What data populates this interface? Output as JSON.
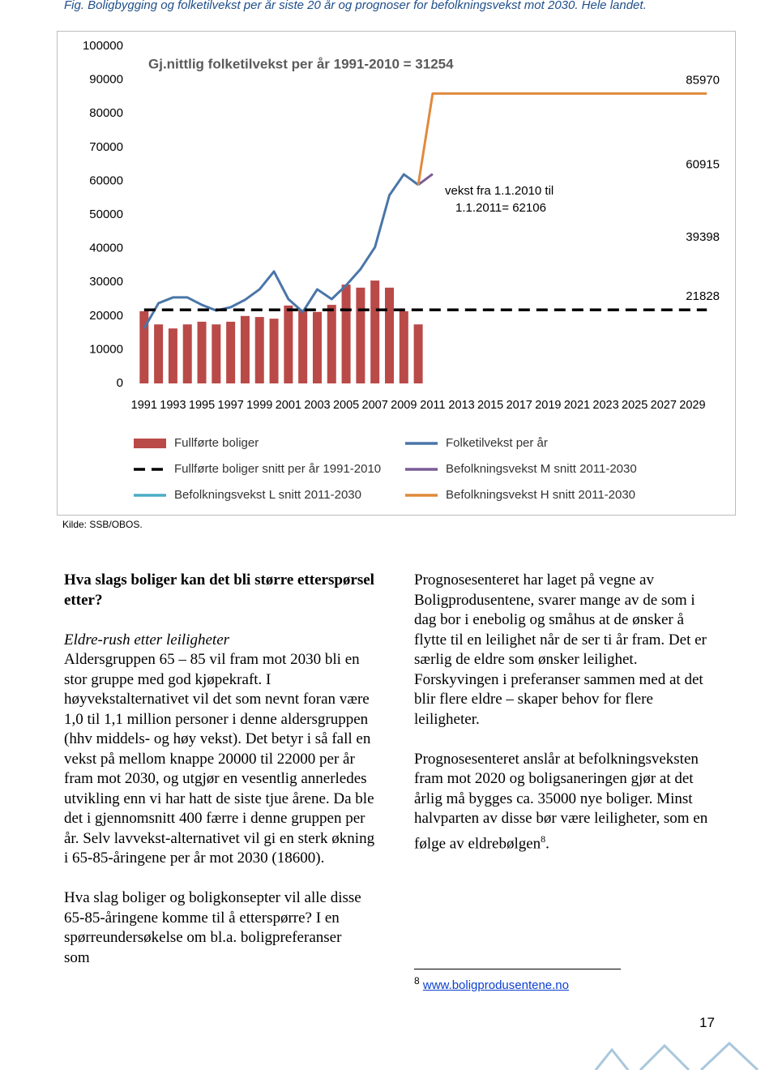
{
  "caption": "Fig. Boligbygging og folketilvekst per år siste 20 år og prognoser for befolkningsvekst mot 2030.  Hele landet.",
  "chart_data": {
    "type": "bar",
    "title": "Gj.nittlig folketilvekst per år 1991-2010 = 31254",
    "annotations": [
      "vekst fra 1.1.2010 til",
      "1.1.2011= 62106"
    ],
    "xlim": [
      1990,
      2031
    ],
    "xticks": [
      1991,
      1993,
      1995,
      1997,
      1999,
      2001,
      2003,
      2005,
      2007,
      2009,
      2011,
      2013,
      2015,
      2017,
      2019,
      2021,
      2023,
      2025,
      2027,
      2029
    ],
    "ylim": [
      0,
      100000
    ],
    "yticks": [
      0,
      10000,
      20000,
      30000,
      40000,
      50000,
      60000,
      70000,
      80000,
      90000,
      100000
    ],
    "grid": false,
    "series": [
      {
        "name": "Fullførte boliger",
        "type": "bar",
        "color": "#b94a48",
        "x": [
          1991,
          1992,
          1993,
          1994,
          1995,
          1996,
          1997,
          1998,
          1999,
          2000,
          2001,
          2002,
          2003,
          2004,
          2005,
          2006,
          2007,
          2008,
          2009,
          2010
        ],
        "values": [
          21400,
          17500,
          16300,
          17500,
          18300,
          17500,
          18300,
          20000,
          19700,
          19200,
          23100,
          21900,
          21200,
          23300,
          29300,
          28400,
          30500,
          28400,
          21400,
          17500
        ]
      },
      {
        "name": "Folketilvekst per år",
        "type": "line",
        "color": "#4a76a8",
        "x": [
          1991,
          1992,
          1993,
          1994,
          1995,
          1996,
          1997,
          1998,
          1999,
          2000,
          2001,
          2002,
          2003,
          2004,
          2005,
          2006,
          2007,
          2008,
          2009,
          2010
        ],
        "values": [
          16300,
          23800,
          25500,
          25500,
          23300,
          21600,
          22600,
          24800,
          27900,
          33200,
          25000,
          21200,
          27900,
          25000,
          29100,
          33900,
          40400,
          55800,
          62000,
          58900
        ]
      },
      {
        "name": "Fullførte boliger snitt per år 1991-2010",
        "type": "line",
        "dashed": true,
        "color": "#000000",
        "x": [
          1991,
          2030
        ],
        "values": [
          21828,
          21828
        ]
      },
      {
        "name": "Befolkningsvekst M snitt 2011-2030",
        "type": "line",
        "color": "#7a5c97",
        "x": [
          2010,
          2011
        ],
        "values": [
          58900,
          62106
        ]
      },
      {
        "name": "Befolkningsvekst L snitt 2011-2030",
        "type": "line",
        "color": "#4bacc6"
      },
      {
        "name": "Befolkningsvekst H snitt 2011-2030",
        "type": "line",
        "color": "#e08a3c",
        "x": [
          2010,
          2011,
          2030
        ],
        "values": [
          58900,
          85970,
          85970
        ]
      }
    ],
    "end_labels": [
      85970,
      60915,
      39398,
      21828
    ]
  },
  "source": "Kilde: SSB/OBOS.",
  "left": {
    "heading": "Hva slags boliger kan det bli større etterspørsel etter?",
    "subheading": "Eldre-rush etter leiligheter",
    "paragraphs": [
      "Aldersgruppen 65 – 85 vil fram mot 2030 bli en stor gruppe med god kjøpekraft. I høyvekstalternativet vil det som nevnt foran være 1,0 til 1,1 million personer i denne aldersgruppen (hhv middels- og høy vekst). Det betyr i så fall en vekst på mellom knappe 20000 til 22000 per år fram mot 2030, og utgjør en vesentlig annerledes utvikling enn vi har hatt de siste tjue årene. Da ble det i gjennomsnitt 400 færre i denne gruppen per år.  Selv lavvekst-alternativet vil gi en sterk økning i 65-85-åringene per år mot 2030 (18600).",
      "Hva slag boliger og boligkonsepter vil alle disse 65-85-åringene komme til å etterspørre? I en spørreundersøkelse om bl.a. boligpreferanser som"
    ]
  },
  "right": {
    "paragraph1": "Prognosesenteret har laget på vegne av Boligprodusentene, svarer mange av de som i dag bor i enebolig og småhus at de ønsker å flytte til en leilighet når de ser ti år fram. Det er særlig de eldre som ønsker leilighet.  Forskyvingen i preferanser sammen med at det blir flere eldre – skaper behov for flere leiligheter.",
    "paragraph2": {
      "text": "Prognosesenteret anslår at befolkningsveksten fram mot 2020 og boligsaneringen gjør at det årlig må bygges ca. 35000 nye boliger. Minst halvparten av disse bør være leiligheter, som en følge av eldrebølgen",
      "footnote_ref": "8",
      "text_after": "."
    }
  },
  "footnote": {
    "number": "8",
    "link": "www.boligprodusentene.no"
  },
  "page_number": "17"
}
